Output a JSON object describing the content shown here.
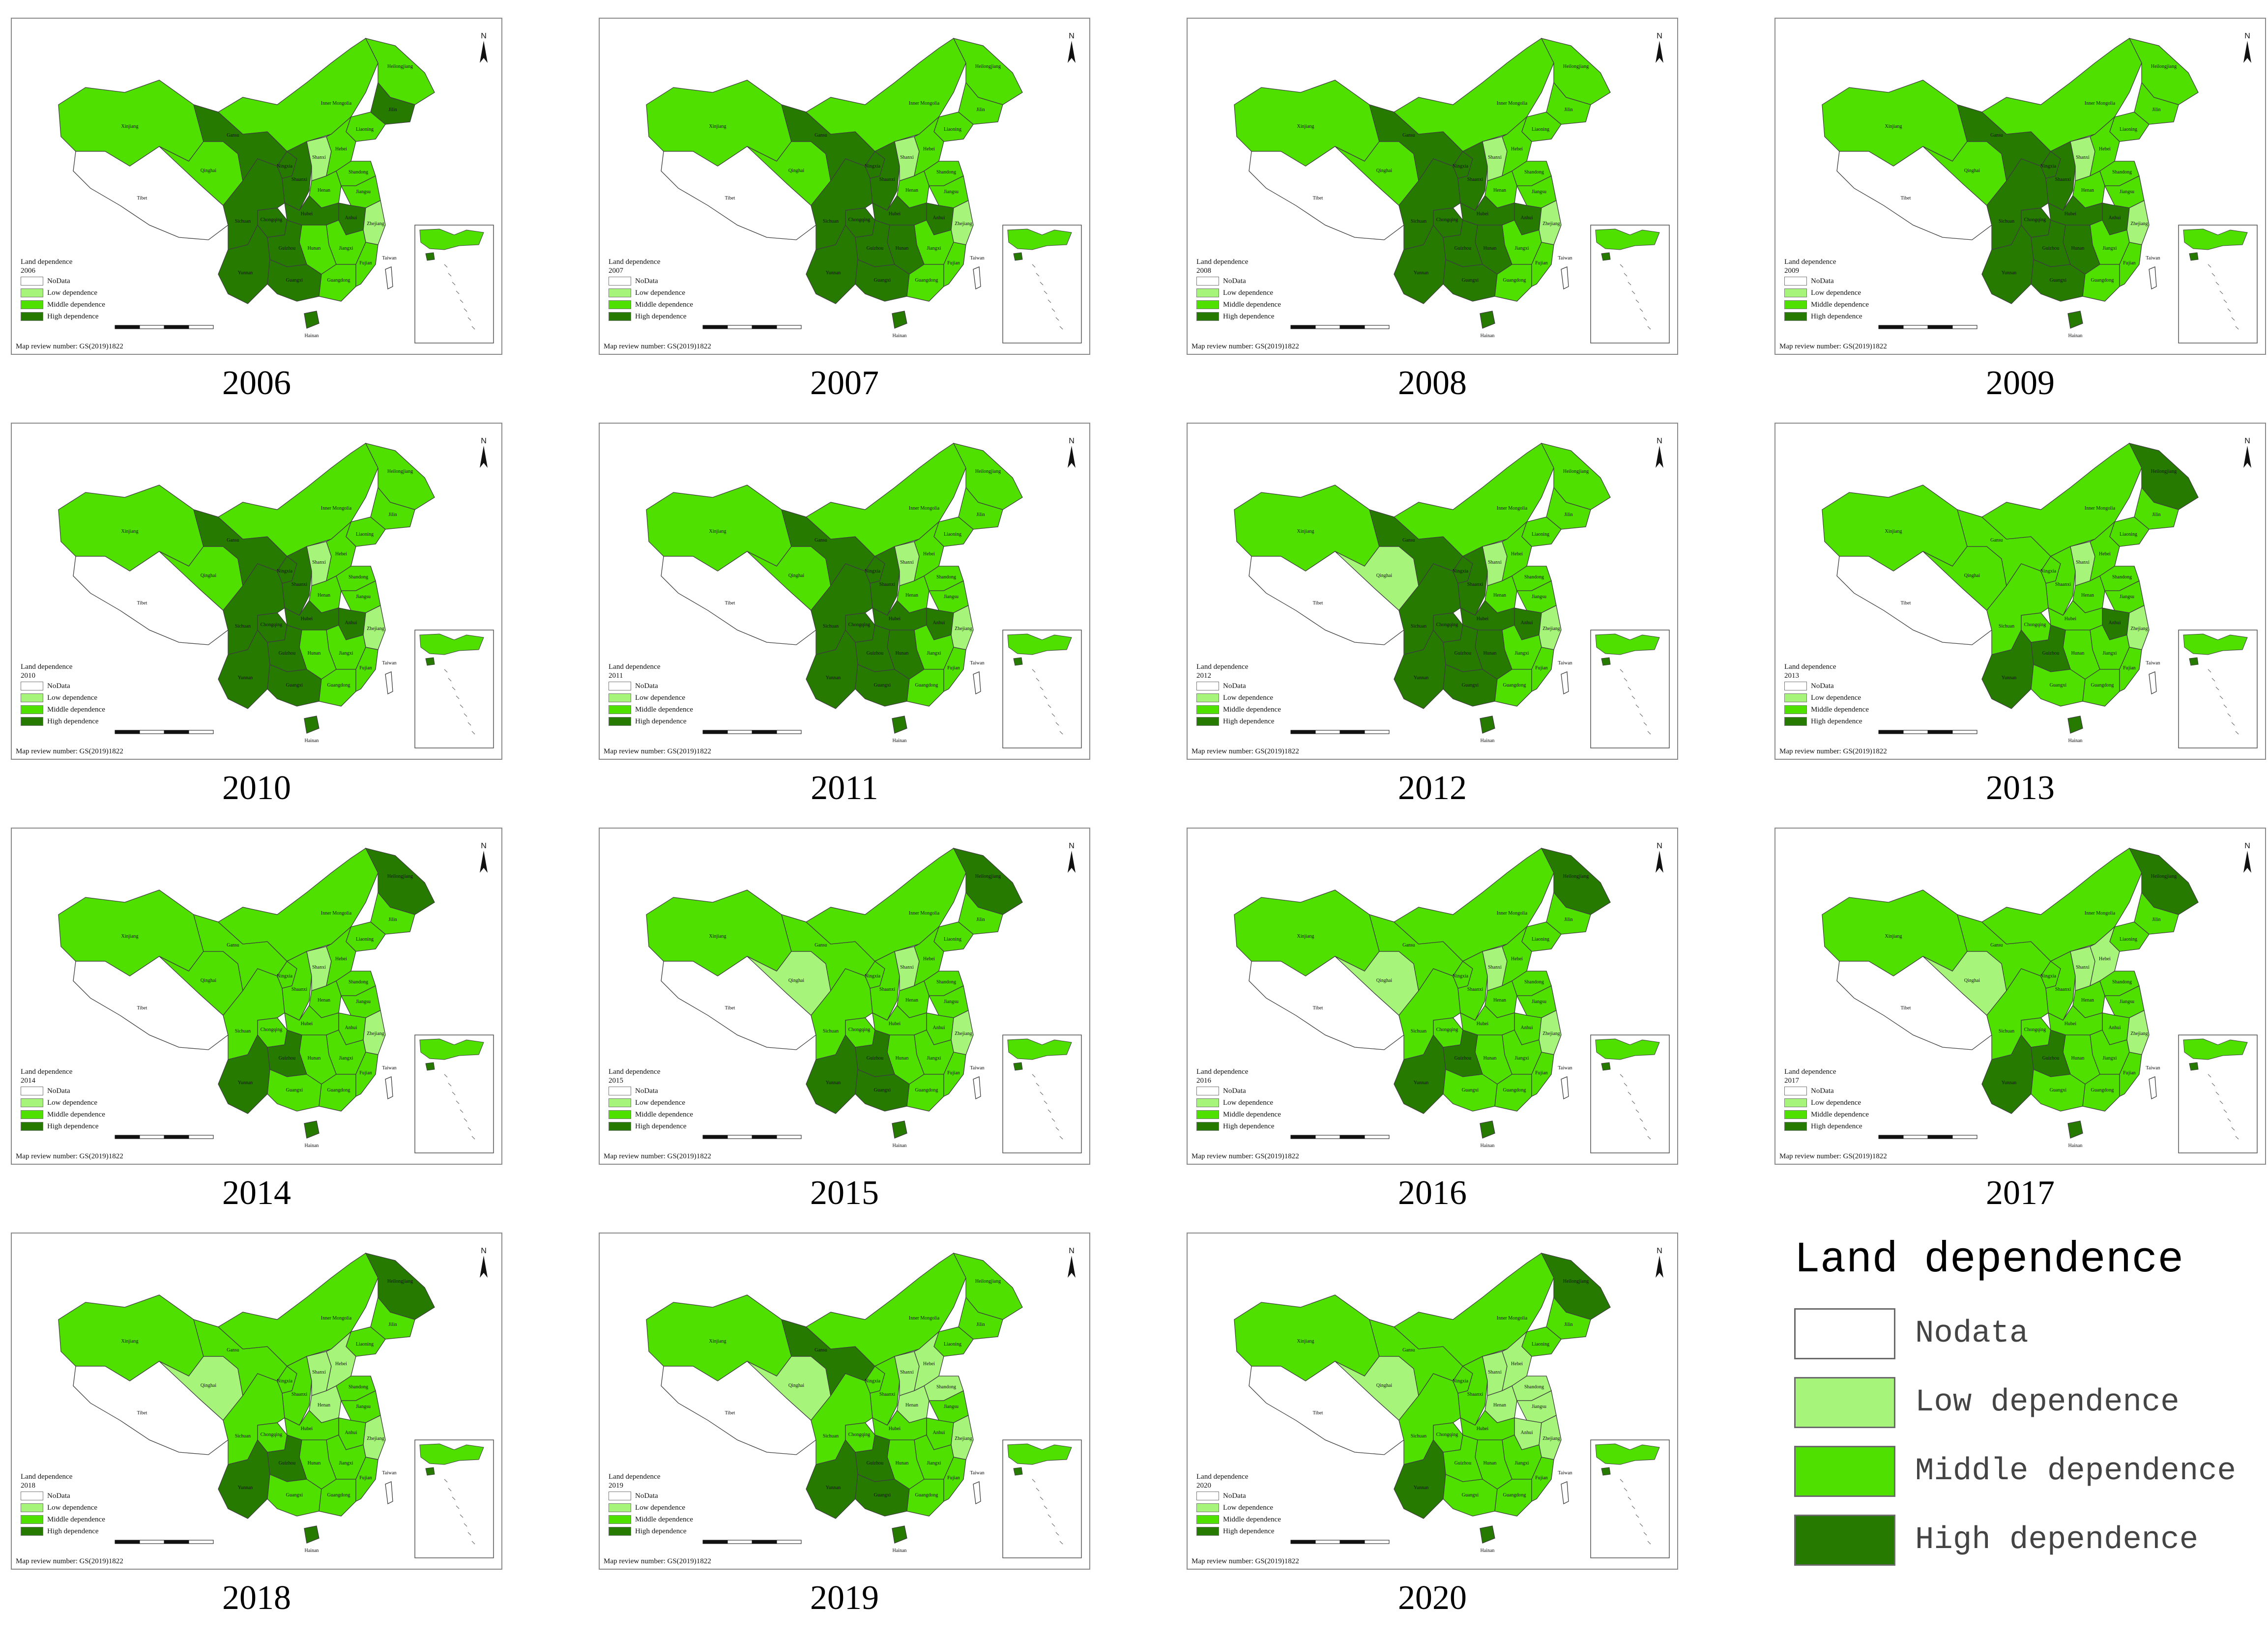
{
  "colors": {
    "nodata": "#ffffff",
    "low": "#a6f57a",
    "middle": "#4fe000",
    "high": "#267a00",
    "border": "#3c3c3c"
  },
  "legend": {
    "title": "Land dependence",
    "items": [
      {
        "key": "nodata",
        "label": "Nodata"
      },
      {
        "key": "low",
        "label": "Low dependence"
      },
      {
        "key": "middle",
        "label": "Middle dependence"
      },
      {
        "key": "high",
        "label": "High dependence"
      }
    ]
  },
  "mini_legend": {
    "title": "Land dependence",
    "items": [
      "NoData",
      "Low dependence",
      "Middle dependence",
      "High dependence"
    ],
    "review_number": "Map review number: GS(2019)1822",
    "north": "N"
  },
  "province_labels": {
    "Xinjiang": "Xinjiang",
    "Tibet": "Tibet",
    "Qinghai": "Qinghai",
    "Gansu": "Gansu",
    "InnerMongolia": "Inner Mongolia",
    "Heilongjiang": "Heilongjiang",
    "Jilin": "Jilin",
    "Liaoning": "Liaoning",
    "Sichuan": "Sichuan",
    "Yunnan": "Yunnan",
    "Guizhou": "Guizhou",
    "Guangxi": "Guangxi",
    "Guangdong": "Guangdong",
    "Hunan": "Hunan",
    "Hubei": "Hubei",
    "Jiangxi": "Jiangxi",
    "Fujian": "Fujian",
    "Zhejiang": "Zhejiang",
    "Anhui": "Anhui",
    "Jiangsu": "Jiangsu",
    "Henan": "Henan",
    "Shandong": "Shandong",
    "Shanxi": "Shanxi",
    "Shaanxi": "Shaanxi",
    "Hebei": "Hebei",
    "Ningxia": "Ningxia",
    "Chongqing": "Chongqing",
    "Taiwan": "Taiwan",
    "Hainan": "Hainan"
  },
  "panels": [
    {
      "year": "2006",
      "classes": {
        "Xinjiang": "middle",
        "Tibet": "nodata",
        "Qinghai": "middle",
        "Gansu": "high",
        "InnerMongolia": "middle",
        "Heilongjiang": "middle",
        "Jilin": "high",
        "Liaoning": "middle",
        "Sichuan": "high",
        "Yunnan": "high",
        "Guizhou": "high",
        "Guangxi": "high",
        "Guangdong": "middle",
        "Hunan": "middle",
        "Hubei": "high",
        "Jiangxi": "middle",
        "Fujian": "middle",
        "Zhejiang": "low",
        "Anhui": "high",
        "Jiangsu": "middle",
        "Henan": "middle",
        "Shandong": "middle",
        "Shanxi": "low",
        "Shaanxi": "high",
        "Hebei": "middle",
        "Ningxia": "high",
        "Chongqing": "high",
        "Taiwan": "nodata",
        "Hainan": "high"
      }
    },
    {
      "year": "2007",
      "classes": {
        "Xinjiang": "middle",
        "Tibet": "nodata",
        "Qinghai": "middle",
        "Gansu": "high",
        "InnerMongolia": "middle",
        "Heilongjiang": "middle",
        "Jilin": "middle",
        "Liaoning": "middle",
        "Sichuan": "high",
        "Yunnan": "high",
        "Guizhou": "high",
        "Guangxi": "high",
        "Guangdong": "middle",
        "Hunan": "high",
        "Hubei": "high",
        "Jiangxi": "middle",
        "Fujian": "middle",
        "Zhejiang": "low",
        "Anhui": "high",
        "Jiangsu": "middle",
        "Henan": "middle",
        "Shandong": "middle",
        "Shanxi": "low",
        "Shaanxi": "high",
        "Hebei": "middle",
        "Ningxia": "high",
        "Chongqing": "high",
        "Taiwan": "nodata",
        "Hainan": "high"
      }
    },
    {
      "year": "2008",
      "classes": {
        "Xinjiang": "middle",
        "Tibet": "nodata",
        "Qinghai": "middle",
        "Gansu": "high",
        "InnerMongolia": "middle",
        "Heilongjiang": "middle",
        "Jilin": "middle",
        "Liaoning": "middle",
        "Sichuan": "high",
        "Yunnan": "high",
        "Guizhou": "high",
        "Guangxi": "high",
        "Guangdong": "middle",
        "Hunan": "high",
        "Hubei": "high",
        "Jiangxi": "middle",
        "Fujian": "middle",
        "Zhejiang": "low",
        "Anhui": "high",
        "Jiangsu": "middle",
        "Henan": "middle",
        "Shandong": "middle",
        "Shanxi": "low",
        "Shaanxi": "high",
        "Hebei": "middle",
        "Ningxia": "high",
        "Chongqing": "high",
        "Taiwan": "nodata",
        "Hainan": "high"
      }
    },
    {
      "year": "2009",
      "classes": {
        "Xinjiang": "middle",
        "Tibet": "nodata",
        "Qinghai": "middle",
        "Gansu": "high",
        "InnerMongolia": "middle",
        "Heilongjiang": "middle",
        "Jilin": "middle",
        "Liaoning": "middle",
        "Sichuan": "high",
        "Yunnan": "high",
        "Guizhou": "high",
        "Guangxi": "high",
        "Guangdong": "middle",
        "Hunan": "high",
        "Hubei": "high",
        "Jiangxi": "middle",
        "Fujian": "middle",
        "Zhejiang": "low",
        "Anhui": "high",
        "Jiangsu": "middle",
        "Henan": "middle",
        "Shandong": "middle",
        "Shanxi": "low",
        "Shaanxi": "high",
        "Hebei": "middle",
        "Ningxia": "high",
        "Chongqing": "high",
        "Taiwan": "nodata",
        "Hainan": "high"
      }
    },
    {
      "year": "2010",
      "classes": {
        "Xinjiang": "middle",
        "Tibet": "nodata",
        "Qinghai": "middle",
        "Gansu": "high",
        "InnerMongolia": "middle",
        "Heilongjiang": "middle",
        "Jilin": "middle",
        "Liaoning": "middle",
        "Sichuan": "high",
        "Yunnan": "high",
        "Guizhou": "high",
        "Guangxi": "high",
        "Guangdong": "middle",
        "Hunan": "middle",
        "Hubei": "high",
        "Jiangxi": "middle",
        "Fujian": "middle",
        "Zhejiang": "low",
        "Anhui": "high",
        "Jiangsu": "middle",
        "Henan": "middle",
        "Shandong": "middle",
        "Shanxi": "low",
        "Shaanxi": "high",
        "Hebei": "middle",
        "Ningxia": "high",
        "Chongqing": "high",
        "Taiwan": "nodata",
        "Hainan": "high"
      }
    },
    {
      "year": "2011",
      "classes": {
        "Xinjiang": "middle",
        "Tibet": "nodata",
        "Qinghai": "middle",
        "Gansu": "high",
        "InnerMongolia": "middle",
        "Heilongjiang": "middle",
        "Jilin": "middle",
        "Liaoning": "middle",
        "Sichuan": "high",
        "Yunnan": "high",
        "Guizhou": "high",
        "Guangxi": "high",
        "Guangdong": "middle",
        "Hunan": "high",
        "Hubei": "high",
        "Jiangxi": "middle",
        "Fujian": "middle",
        "Zhejiang": "low",
        "Anhui": "high",
        "Jiangsu": "middle",
        "Henan": "middle",
        "Shandong": "middle",
        "Shanxi": "low",
        "Shaanxi": "high",
        "Hebei": "middle",
        "Ningxia": "high",
        "Chongqing": "high",
        "Taiwan": "nodata",
        "Hainan": "high"
      }
    },
    {
      "year": "2012",
      "classes": {
        "Xinjiang": "middle",
        "Tibet": "nodata",
        "Qinghai": "low",
        "Gansu": "high",
        "InnerMongolia": "middle",
        "Heilongjiang": "middle",
        "Jilin": "middle",
        "Liaoning": "middle",
        "Sichuan": "high",
        "Yunnan": "high",
        "Guizhou": "high",
        "Guangxi": "high",
        "Guangdong": "middle",
        "Hunan": "high",
        "Hubei": "high",
        "Jiangxi": "middle",
        "Fujian": "middle",
        "Zhejiang": "low",
        "Anhui": "high",
        "Jiangsu": "middle",
        "Henan": "middle",
        "Shandong": "middle",
        "Shanxi": "low",
        "Shaanxi": "high",
        "Hebei": "middle",
        "Ningxia": "high",
        "Chongqing": "high",
        "Taiwan": "nodata",
        "Hainan": "high"
      }
    },
    {
      "year": "2013",
      "classes": {
        "Xinjiang": "middle",
        "Tibet": "nodata",
        "Qinghai": "middle",
        "Gansu": "middle",
        "InnerMongolia": "middle",
        "Heilongjiang": "high",
        "Jilin": "middle",
        "Liaoning": "middle",
        "Sichuan": "middle",
        "Yunnan": "high",
        "Guizhou": "high",
        "Guangxi": "middle",
        "Guangdong": "middle",
        "Hunan": "middle",
        "Hubei": "middle",
        "Jiangxi": "middle",
        "Fujian": "middle",
        "Zhejiang": "low",
        "Anhui": "high",
        "Jiangsu": "middle",
        "Henan": "middle",
        "Shandong": "middle",
        "Shanxi": "low",
        "Shaanxi": "middle",
        "Hebei": "middle",
        "Ningxia": "middle",
        "Chongqing": "middle",
        "Taiwan": "nodata",
        "Hainan": "high"
      }
    },
    {
      "year": "2014",
      "classes": {
        "Xinjiang": "middle",
        "Tibet": "nodata",
        "Qinghai": "middle",
        "Gansu": "middle",
        "InnerMongolia": "middle",
        "Heilongjiang": "high",
        "Jilin": "middle",
        "Liaoning": "middle",
        "Sichuan": "middle",
        "Yunnan": "high",
        "Guizhou": "high",
        "Guangxi": "middle",
        "Guangdong": "middle",
        "Hunan": "middle",
        "Hubei": "middle",
        "Jiangxi": "middle",
        "Fujian": "middle",
        "Zhejiang": "low",
        "Anhui": "middle",
        "Jiangsu": "middle",
        "Henan": "middle",
        "Shandong": "middle",
        "Shanxi": "low",
        "Shaanxi": "middle",
        "Hebei": "middle",
        "Ningxia": "middle",
        "Chongqing": "middle",
        "Taiwan": "nodata",
        "Hainan": "high"
      }
    },
    {
      "year": "2015",
      "classes": {
        "Xinjiang": "middle",
        "Tibet": "nodata",
        "Qinghai": "low",
        "Gansu": "middle",
        "InnerMongolia": "middle",
        "Heilongjiang": "high",
        "Jilin": "middle",
        "Liaoning": "middle",
        "Sichuan": "middle",
        "Yunnan": "high",
        "Guizhou": "high",
        "Guangxi": "high",
        "Guangdong": "middle",
        "Hunan": "middle",
        "Hubei": "middle",
        "Jiangxi": "middle",
        "Fujian": "middle",
        "Zhejiang": "low",
        "Anhui": "middle",
        "Jiangsu": "middle",
        "Henan": "middle",
        "Shandong": "middle",
        "Shanxi": "low",
        "Shaanxi": "middle",
        "Hebei": "middle",
        "Ningxia": "middle",
        "Chongqing": "middle",
        "Taiwan": "nodata",
        "Hainan": "high"
      }
    },
    {
      "year": "2016",
      "classes": {
        "Xinjiang": "middle",
        "Tibet": "nodata",
        "Qinghai": "low",
        "Gansu": "middle",
        "InnerMongolia": "middle",
        "Heilongjiang": "high",
        "Jilin": "middle",
        "Liaoning": "middle",
        "Sichuan": "middle",
        "Yunnan": "high",
        "Guizhou": "high",
        "Guangxi": "middle",
        "Guangdong": "middle",
        "Hunan": "middle",
        "Hubei": "middle",
        "Jiangxi": "middle",
        "Fujian": "middle",
        "Zhejiang": "low",
        "Anhui": "middle",
        "Jiangsu": "middle",
        "Henan": "middle",
        "Shandong": "middle",
        "Shanxi": "low",
        "Shaanxi": "middle",
        "Hebei": "middle",
        "Ningxia": "middle",
        "Chongqing": "middle",
        "Taiwan": "nodata",
        "Hainan": "high"
      }
    },
    {
      "year": "2017",
      "classes": {
        "Xinjiang": "middle",
        "Tibet": "nodata",
        "Qinghai": "low",
        "Gansu": "middle",
        "InnerMongolia": "middle",
        "Heilongjiang": "high",
        "Jilin": "middle",
        "Liaoning": "middle",
        "Sichuan": "middle",
        "Yunnan": "high",
        "Guizhou": "high",
        "Guangxi": "middle",
        "Guangdong": "middle",
        "Hunan": "middle",
        "Hubei": "middle",
        "Jiangxi": "middle",
        "Fujian": "middle",
        "Zhejiang": "low",
        "Anhui": "middle",
        "Jiangsu": "middle",
        "Henan": "middle",
        "Shandong": "middle",
        "Shanxi": "low",
        "Shaanxi": "middle",
        "Hebei": "low",
        "Ningxia": "middle",
        "Chongqing": "middle",
        "Taiwan": "nodata",
        "Hainan": "high"
      }
    },
    {
      "year": "2018",
      "classes": {
        "Xinjiang": "middle",
        "Tibet": "nodata",
        "Qinghai": "low",
        "Gansu": "middle",
        "InnerMongolia": "middle",
        "Heilongjiang": "high",
        "Jilin": "middle",
        "Liaoning": "middle",
        "Sichuan": "middle",
        "Yunnan": "high",
        "Guizhou": "high",
        "Guangxi": "middle",
        "Guangdong": "middle",
        "Hunan": "middle",
        "Hubei": "middle",
        "Jiangxi": "middle",
        "Fujian": "middle",
        "Zhejiang": "low",
        "Anhui": "middle",
        "Jiangsu": "middle",
        "Henan": "low",
        "Shandong": "middle",
        "Shanxi": "low",
        "Shaanxi": "middle",
        "Hebei": "low",
        "Ningxia": "middle",
        "Chongqing": "middle",
        "Taiwan": "nodata",
        "Hainan": "high"
      }
    },
    {
      "year": "2019",
      "classes": {
        "Xinjiang": "middle",
        "Tibet": "nodata",
        "Qinghai": "low",
        "Gansu": "high",
        "InnerMongolia": "middle",
        "Heilongjiang": "middle",
        "Jilin": "middle",
        "Liaoning": "middle",
        "Sichuan": "middle",
        "Yunnan": "high",
        "Guizhou": "high",
        "Guangxi": "high",
        "Guangdong": "middle",
        "Hunan": "middle",
        "Hubei": "middle",
        "Jiangxi": "middle",
        "Fujian": "middle",
        "Zhejiang": "low",
        "Anhui": "middle",
        "Jiangsu": "middle",
        "Henan": "low",
        "Shandong": "low",
        "Shanxi": "low",
        "Shaanxi": "middle",
        "Hebei": "low",
        "Ningxia": "middle",
        "Chongqing": "middle",
        "Taiwan": "nodata",
        "Hainan": "high"
      }
    },
    {
      "year": "2020",
      "classes": {
        "Xinjiang": "middle",
        "Tibet": "nodata",
        "Qinghai": "low",
        "Gansu": "middle",
        "InnerMongolia": "middle",
        "Heilongjiang": "high",
        "Jilin": "middle",
        "Liaoning": "middle",
        "Sichuan": "middle",
        "Yunnan": "high",
        "Guizhou": "middle",
        "Guangxi": "middle",
        "Guangdong": "middle",
        "Hunan": "middle",
        "Hubei": "middle",
        "Jiangxi": "middle",
        "Fujian": "middle",
        "Zhejiang": "low",
        "Anhui": "low",
        "Jiangsu": "low",
        "Henan": "low",
        "Shandong": "low",
        "Shanxi": "low",
        "Shaanxi": "middle",
        "Hebei": "low",
        "Ningxia": "middle",
        "Chongqing": "middle",
        "Taiwan": "nodata",
        "Hainan": "high"
      }
    }
  ]
}
